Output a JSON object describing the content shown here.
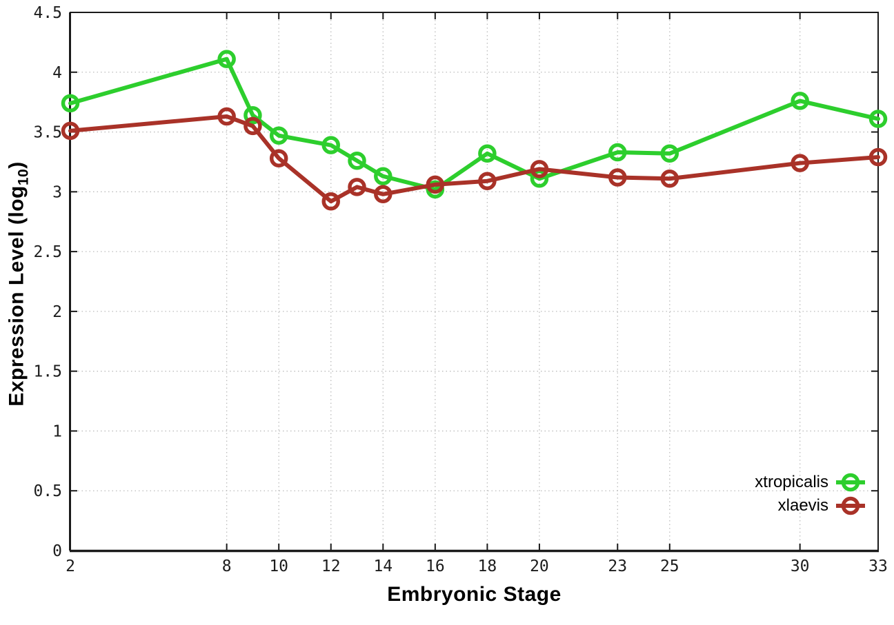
{
  "chart_data": {
    "type": "line",
    "title": "",
    "xlabel": "Embryonic Stage",
    "ylabel": {
      "pre": "Expression Level (log",
      "sub": "10",
      "post": ")"
    },
    "x_axis": {
      "min": 2,
      "max": 33,
      "tick_labels": [
        "2",
        "8",
        "10",
        "12",
        "14",
        "16",
        "18",
        "20",
        "23",
        "25",
        "30",
        "33"
      ],
      "tick_values": [
        2,
        8,
        10,
        12,
        14,
        16,
        18,
        20,
        23,
        25,
        30,
        33
      ]
    },
    "y_axis": {
      "min": 0,
      "max": 4.5,
      "tick_labels": [
        "0",
        "0.5",
        "1",
        "1.5",
        "2",
        "2.5",
        "3",
        "3.5",
        "4",
        "4.5"
      ],
      "tick_values": [
        0,
        0.5,
        1,
        1.5,
        2,
        2.5,
        3,
        3.5,
        4,
        4.5
      ]
    },
    "grid": true,
    "legend_position": "bottom-right",
    "x": [
      2,
      8,
      9,
      10,
      12,
      13,
      14,
      16,
      18,
      20,
      23,
      25,
      30,
      33
    ],
    "series": [
      {
        "name": "xtropicalis",
        "color": "#2dce2d",
        "values": [
          3.74,
          4.11,
          3.64,
          3.47,
          3.39,
          3.26,
          3.13,
          3.02,
          3.32,
          3.11,
          3.33,
          3.32,
          3.76,
          3.61
        ]
      },
      {
        "name": "xlaevis",
        "color": "#a93228",
        "values": [
          3.51,
          3.63,
          3.55,
          3.28,
          2.92,
          3.04,
          2.98,
          3.06,
          3.09,
          3.19,
          3.12,
          3.11,
          3.24,
          3.29
        ]
      }
    ],
    "style": {
      "background": "#ffffff",
      "grid_color": "#bbbbbb",
      "axis_color": "#1a1a1a",
      "text_color": "#000000",
      "marker": "open-circle"
    }
  }
}
